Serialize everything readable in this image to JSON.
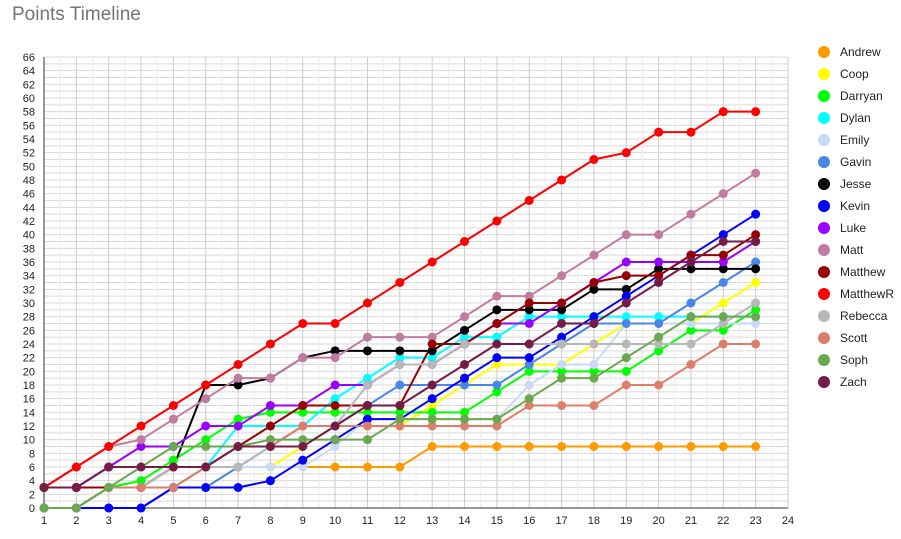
{
  "title": "Points Timeline",
  "chart_data": {
    "type": "line",
    "title": "Points Timeline",
    "x": [
      1,
      2,
      3,
      4,
      5,
      6,
      7,
      8,
      9,
      10,
      11,
      12,
      13,
      14,
      15,
      16,
      17,
      18,
      19,
      20,
      21,
      22,
      23
    ],
    "xlim": [
      1,
      24
    ],
    "xticks": [
      1,
      2,
      3,
      4,
      5,
      6,
      7,
      8,
      9,
      10,
      11,
      12,
      13,
      14,
      15,
      16,
      17,
      18,
      19,
      20,
      21,
      22,
      23,
      24
    ],
    "ylim": [
      0,
      66
    ],
    "yticks": [
      0,
      2,
      4,
      6,
      8,
      10,
      12,
      14,
      16,
      18,
      20,
      22,
      24,
      26,
      28,
      30,
      32,
      34,
      36,
      38,
      40,
      42,
      44,
      46,
      48,
      50,
      52,
      54,
      56,
      58,
      60,
      62,
      64,
      66
    ],
    "grid": true,
    "legend_position": "right",
    "series": [
      {
        "name": "Andrew",
        "color": "#ff9900",
        "values": [
          0,
          0,
          0,
          0,
          3,
          6,
          6,
          6,
          6,
          6,
          6,
          6,
          9,
          9,
          9,
          9,
          9,
          9,
          9,
          9,
          9,
          9,
          9
        ]
      },
      {
        "name": "Coop",
        "color": "#ffff00",
        "values": [
          0,
          0,
          3,
          3,
          3,
          3,
          6,
          6,
          9,
          12,
          12,
          12,
          15,
          18,
          21,
          21,
          21,
          24,
          27,
          27,
          27,
          30,
          33
        ]
      },
      {
        "name": "Darryan",
        "color": "#00ff00",
        "values": [
          0,
          0,
          3,
          4,
          7,
          10,
          13,
          14,
          14,
          14,
          14,
          14,
          14,
          14,
          17,
          20,
          20,
          20,
          20,
          23,
          26,
          26,
          29
        ]
      },
      {
        "name": "Dylan",
        "color": "#00ffff",
        "values": [
          0,
          0,
          3,
          3,
          3,
          6,
          12,
          12,
          12,
          16,
          19,
          22,
          22,
          25,
          25,
          28,
          28,
          28,
          28,
          28,
          28,
          28,
          28
        ]
      },
      {
        "name": "Emily",
        "color": "#c9daf8",
        "values": [
          0,
          0,
          0,
          0,
          3,
          3,
          6,
          6,
          6,
          9,
          13,
          13,
          13,
          13,
          13,
          18,
          21,
          21,
          27,
          27,
          27,
          27,
          27
        ]
      },
      {
        "name": "Gavin",
        "color": "#4a86e8",
        "values": [
          0,
          0,
          0,
          0,
          3,
          3,
          6,
          9,
          12,
          12,
          15,
          18,
          18,
          18,
          18,
          21,
          24,
          27,
          27,
          27,
          30,
          33,
          36
        ]
      },
      {
        "name": "Jesse",
        "color": "#000000",
        "values": [
          3,
          3,
          3,
          3,
          6,
          18,
          18,
          19,
          22,
          23,
          23,
          23,
          23,
          26,
          29,
          29,
          29,
          32,
          32,
          35,
          35,
          35,
          35
        ]
      },
      {
        "name": "Kevin",
        "color": "#0000ff",
        "values": [
          0,
          0,
          0,
          0,
          3,
          3,
          3,
          4,
          7,
          10,
          13,
          13,
          16,
          19,
          22,
          22,
          25,
          28,
          31,
          34,
          37,
          40,
          43
        ]
      },
      {
        "name": "Luke",
        "color": "#9900ff",
        "values": [
          3,
          3,
          6,
          9,
          9,
          12,
          12,
          15,
          15,
          18,
          18,
          21,
          21,
          24,
          27,
          27,
          30,
          33,
          36,
          36,
          36,
          36,
          39
        ]
      },
      {
        "name": "Matt",
        "color": "#c27ba0",
        "values": [
          3,
          6,
          9,
          10,
          13,
          16,
          19,
          19,
          22,
          22,
          25,
          25,
          25,
          28,
          31,
          31,
          34,
          37,
          40,
          40,
          43,
          46,
          49
        ]
      },
      {
        "name": "Matthew",
        "color": "#990000",
        "values": [
          3,
          3,
          3,
          3,
          6,
          6,
          9,
          12,
          15,
          15,
          15,
          15,
          24,
          24,
          27,
          30,
          30,
          33,
          34,
          34,
          37,
          37,
          40
        ]
      },
      {
        "name": "MatthewR",
        "color": "#ff0000",
        "values": [
          3,
          6,
          9,
          12,
          15,
          18,
          21,
          24,
          27,
          27,
          30,
          33,
          36,
          39,
          42,
          45,
          48,
          51,
          52,
          55,
          55,
          58,
          58
        ]
      },
      {
        "name": "Rebecca",
        "color": "#b7b7b7",
        "values": [
          0,
          0,
          3,
          3,
          6,
          6,
          6,
          9,
          12,
          12,
          18,
          21,
          21,
          24,
          24,
          24,
          24,
          24,
          24,
          24,
          24,
          27,
          30
        ]
      },
      {
        "name": "Scott",
        "color": "#dd7e6b",
        "values": [
          0,
          0,
          3,
          3,
          3,
          6,
          9,
          9,
          12,
          12,
          12,
          12,
          12,
          12,
          12,
          15,
          15,
          15,
          18,
          18,
          21,
          24,
          24
        ]
      },
      {
        "name": "Soph",
        "color": "#6aa84f",
        "values": [
          0,
          0,
          3,
          6,
          9,
          9,
          9,
          10,
          10,
          10,
          10,
          13,
          13,
          13,
          13,
          16,
          19,
          19,
          22,
          25,
          28,
          28,
          28
        ]
      },
      {
        "name": "Zach",
        "color": "#741b47",
        "values": [
          3,
          3,
          6,
          6,
          6,
          6,
          9,
          9,
          9,
          12,
          15,
          15,
          18,
          21,
          24,
          24,
          27,
          27,
          30,
          33,
          36,
          39,
          39
        ]
      }
    ]
  }
}
